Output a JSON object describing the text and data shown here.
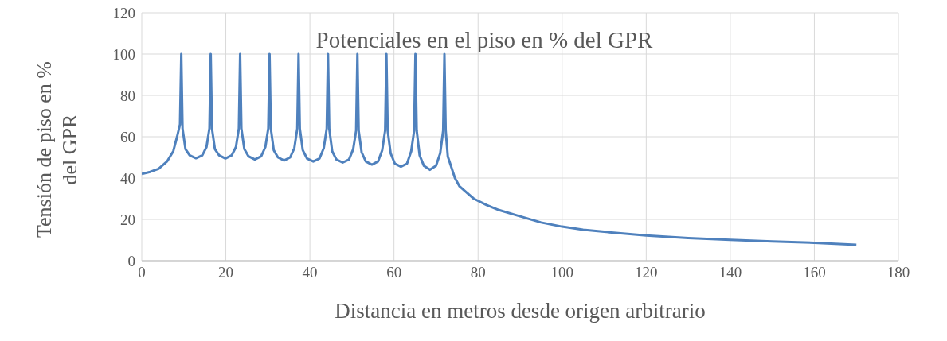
{
  "chart_data": {
    "type": "line",
    "title": "Potenciales en el piso en % del GPR",
    "xlabel": "Distancia en metros desde origen arbitrario",
    "ylabel": "Tensión de piso en % del GPR",
    "xlim": [
      0,
      180
    ],
    "xticks": [
      0,
      20,
      40,
      60,
      80,
      100,
      120,
      140,
      160,
      180
    ],
    "ylim": [
      0,
      120
    ],
    "yticks": [
      0,
      20,
      40,
      60,
      80,
      100,
      120
    ],
    "grid": true,
    "legend": false,
    "marker": "none",
    "line_style": "solid",
    "series": [
      {
        "color": "#4f81bd",
        "x": [
          0,
          2,
          4,
          6,
          7.5,
          8.4,
          9.1,
          9.4,
          9.7,
          10.4,
          11.4,
          12.9,
          14.4,
          15.4,
          16.1,
          16.4,
          16.7,
          17.4,
          18.4,
          19.9,
          21.4,
          22.4,
          23.1,
          23.4,
          23.7,
          24.4,
          25.4,
          26.9,
          28.4,
          29.4,
          30.1,
          30.4,
          30.7,
          31.4,
          32.4,
          33.85,
          35.3,
          36.3,
          37.0,
          37.3,
          37.6,
          38.3,
          39.3,
          40.8,
          42.3,
          43.3,
          44.0,
          44.3,
          44.6,
          45.3,
          46.3,
          47.8,
          49.3,
          50.3,
          51.0,
          51.3,
          51.6,
          52.3,
          53.3,
          54.75,
          56.2,
          57.2,
          57.9,
          58.2,
          58.5,
          59.2,
          60.2,
          61.65,
          63.1,
          64.1,
          64.8,
          65.1,
          65.4,
          66.1,
          67.1,
          68.55,
          70,
          71,
          71.7,
          72.0,
          72.3,
          72.8,
          74.5,
          75.6,
          77,
          79,
          82,
          85,
          90,
          95,
          100,
          105,
          110,
          120,
          130,
          140,
          150,
          160,
          170
        ],
        "values": [
          42,
          43,
          44.5,
          48,
          53,
          60,
          66,
          100,
          64,
          54,
          51,
          49.6,
          51,
          55,
          64,
          100,
          64,
          54,
          51,
          49.5,
          51,
          55,
          64,
          100,
          64,
          54,
          50.5,
          49,
          50.5,
          55,
          64,
          100,
          64,
          53.5,
          50,
          48.5,
          50,
          54.5,
          64,
          100,
          64,
          53.5,
          49.5,
          48,
          49.5,
          54.5,
          64,
          100,
          64,
          53,
          49,
          47.5,
          49,
          54,
          63,
          100,
          63,
          52.5,
          48,
          46.5,
          48,
          53.5,
          63,
          100,
          63,
          52,
          47,
          45.5,
          47,
          53,
          63,
          100,
          63,
          51,
          46,
          44,
          46,
          52,
          63,
          100,
          63,
          50.5,
          40,
          36,
          33.5,
          30,
          27,
          24.5,
          21.5,
          18.5,
          16.5,
          15,
          14,
          12.2,
          11,
          10.1,
          9.3,
          8.7,
          7.7
        ]
      }
    ]
  }
}
